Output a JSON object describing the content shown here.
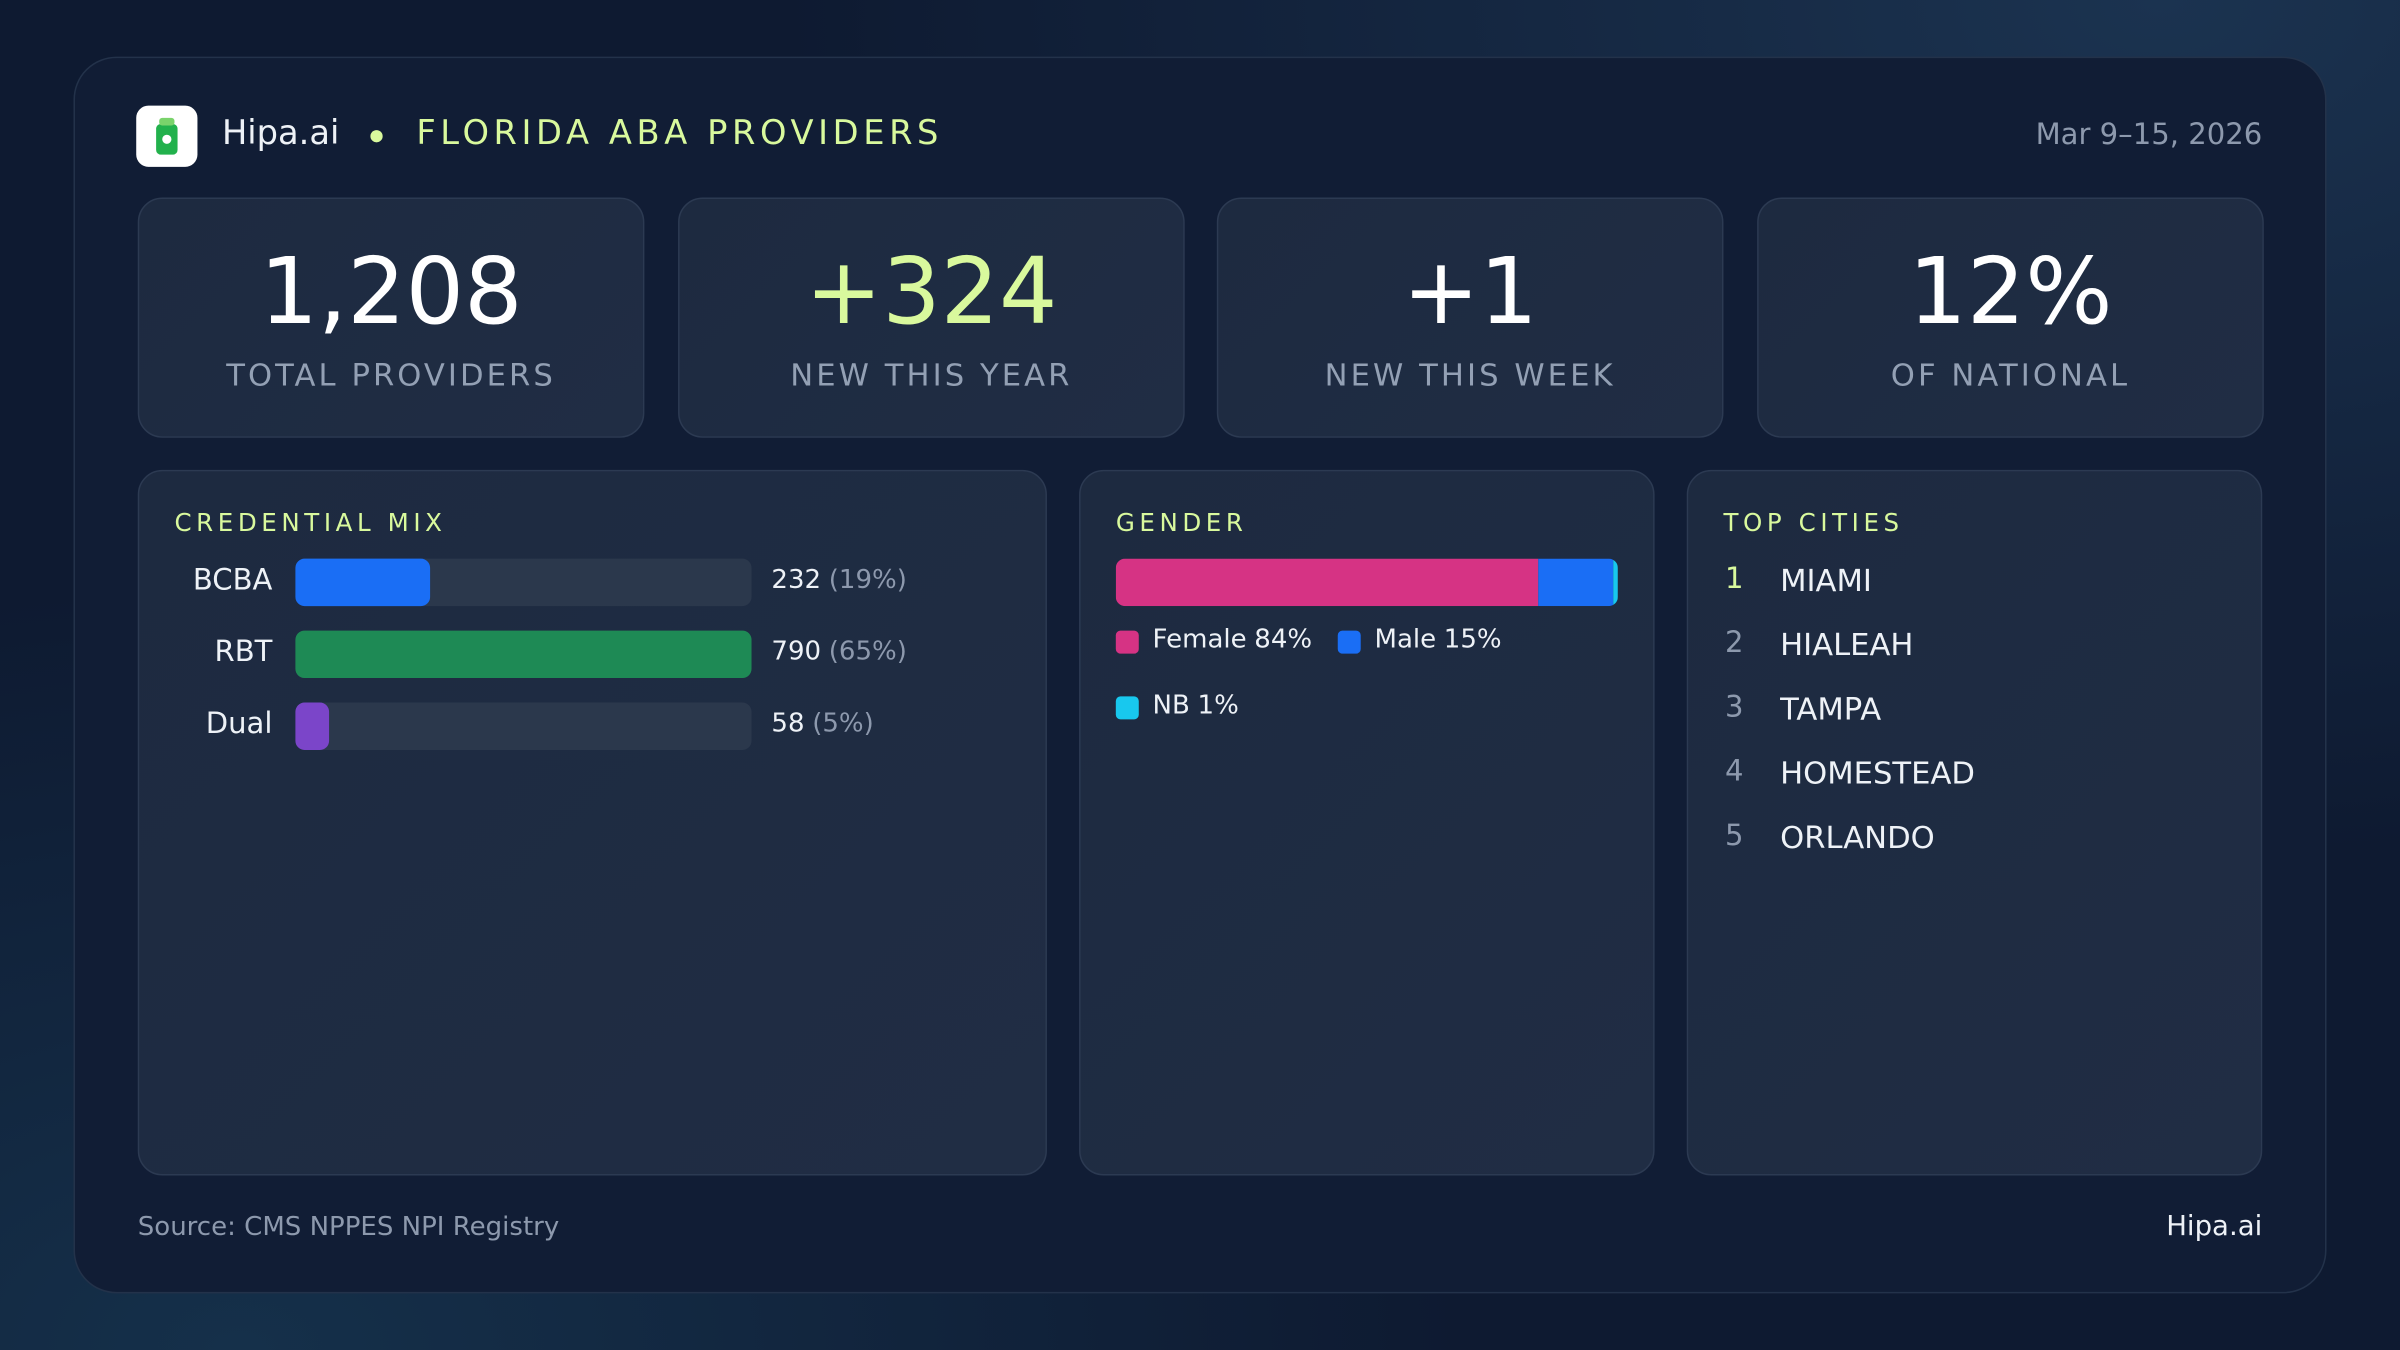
{
  "header": {
    "brand": "Hipa.ai",
    "title": "FLORIDA ABA PROVIDERS",
    "date": "Mar 9–15, 2026"
  },
  "kpis": [
    {
      "value": "1,208",
      "label": "TOTAL PROVIDERS",
      "color": "#ffffff"
    },
    {
      "value": "+324",
      "label": "NEW THIS YEAR",
      "color": "#d9f99d"
    },
    {
      "value": "+1",
      "label": "NEW THIS WEEK",
      "color": "#ffffff"
    },
    {
      "value": "12%",
      "label": "OF NATIONAL",
      "color": "#ffffff"
    }
  ],
  "credential_mix": {
    "title": "CREDENTIAL MIX",
    "rows": [
      {
        "name": "BCBA",
        "count": 232,
        "share_label": "(19%)",
        "color": "#1a6ef5"
      },
      {
        "name": "RBT",
        "count": 790,
        "share_label": "(65%)",
        "color": "#1e8a55"
      },
      {
        "name": "Dual",
        "count": 58,
        "share_label": "(5%)",
        "color": "#7b45c9"
      }
    ]
  },
  "gender": {
    "title": "GENDER",
    "segments": [
      {
        "name": "Female",
        "value": 84,
        "value_label": "84%",
        "color": "#d63384"
      },
      {
        "name": "Male",
        "value": 15,
        "value_label": "15%",
        "color": "#1a6ef5"
      },
      {
        "name": "NB",
        "value": 1,
        "value_label": "1%",
        "color": "#18c8ee"
      }
    ]
  },
  "top_cities": {
    "title": "TOP CITIES",
    "rows": [
      {
        "rank": "1",
        "name": "MIAMI"
      },
      {
        "rank": "2",
        "name": "HIALEAH"
      },
      {
        "rank": "3",
        "name": "TAMPA"
      },
      {
        "rank": "4",
        "name": "HOMESTEAD"
      },
      {
        "rank": "5",
        "name": "ORLANDO"
      }
    ]
  },
  "footer": {
    "source": "Source: CMS NPPES NPI Registry",
    "brand": "Hipa.ai"
  }
}
